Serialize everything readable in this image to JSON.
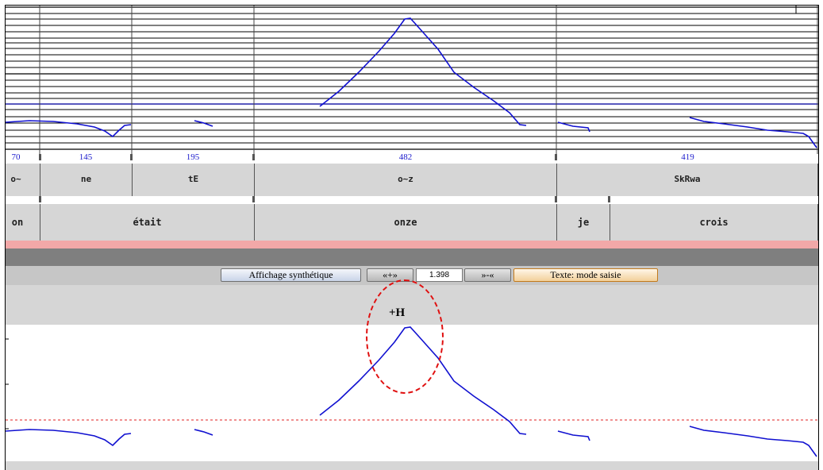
{
  "durations": [
    "70",
    "145",
    "195",
    "482",
    "419"
  ],
  "phonemes": [
    "o~",
    "ne",
    "tE",
    "o~z",
    "SkRwa"
  ],
  "words": [
    "on",
    "était",
    "onze",
    "je",
    "crois"
  ],
  "toolbar": {
    "synthetic_label": "Affichage synthétique",
    "zoom_in_label": "«+»",
    "zoom_value": "1.398",
    "zoom_out_label": "»-«",
    "text_mode_label": "Texte: mode saisie"
  },
  "tone_label": "+H",
  "colors": {
    "pitch_curve": "#1010d0",
    "reference_line": "#e02020",
    "highlight_ellipse": "#e01010",
    "tier_background": "#d6d6d6",
    "toolbar_background": "#c6c6c6",
    "separator_pink": "#f2a8a8",
    "separator_dark": "#7f7f7f",
    "duration_text": "#1a1acc"
  },
  "icons": {
    "highlight": "dashed-red-ellipse"
  }
}
